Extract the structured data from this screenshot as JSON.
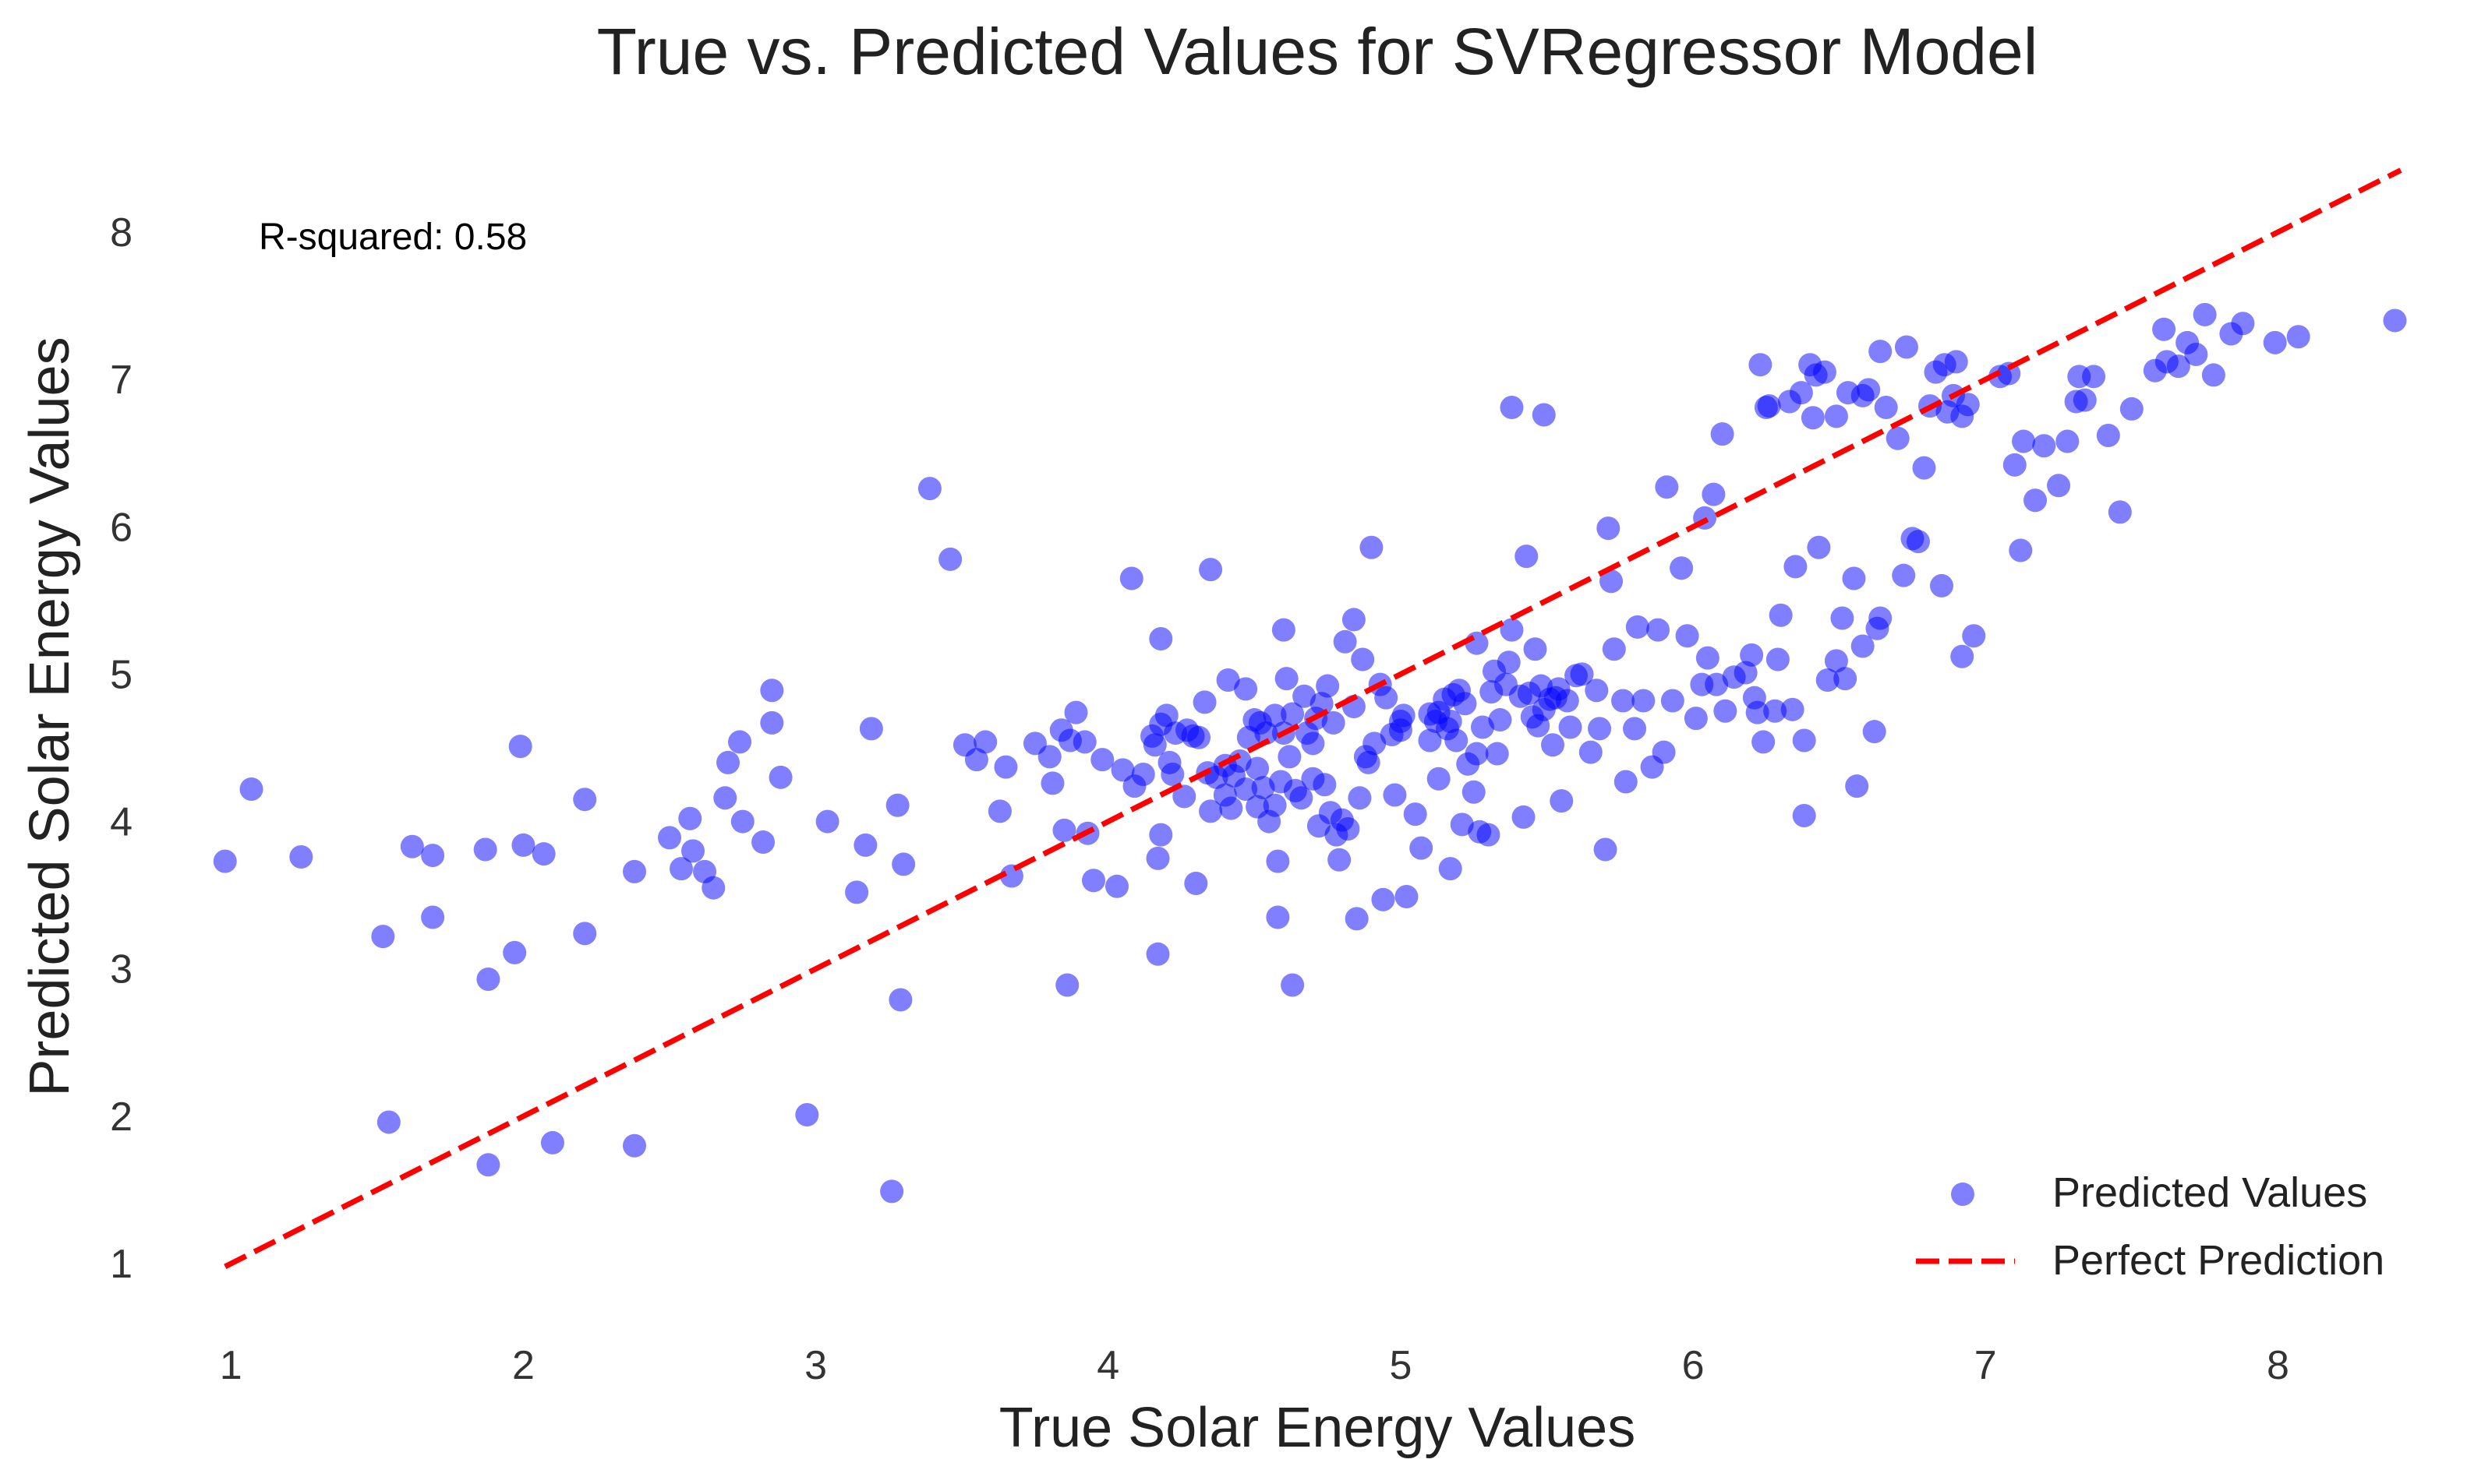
{
  "chart_data": {
    "type": "scatter",
    "title": "True vs. Predicted Values for SVRegressor Model",
    "xlabel": "True Solar Energy Values",
    "ylabel": "Predicted Solar Energy Values",
    "xlim": [
      0.97,
      8.42
    ],
    "ylim": [
      0.72,
      8.65
    ],
    "x_ticks": [
      1,
      2,
      3,
      4,
      5,
      6,
      7,
      8
    ],
    "y_ticks": [
      1,
      2,
      3,
      4,
      5,
      6,
      7,
      8
    ],
    "grid": false,
    "annotation": "R-squared: 0.58",
    "legend_position": "bottom-right",
    "colors": {
      "points": "#0000ff",
      "reference_line": "#ff0000"
    },
    "series": [
      {
        "name": "Predicted Values",
        "kind": "scatter",
        "color": "#0000ff",
        "alpha": 0.5,
        "points": [
          [
            0.98,
            3.73
          ],
          [
            1.07,
            4.22
          ],
          [
            1.24,
            3.76
          ],
          [
            1.52,
            3.22
          ],
          [
            1.54,
            1.96
          ],
          [
            1.62,
            3.83
          ],
          [
            1.69,
            3.77
          ],
          [
            1.69,
            3.35
          ],
          [
            1.87,
            3.81
          ],
          [
            1.88,
            2.93
          ],
          [
            1.88,
            1.67
          ],
          [
            1.97,
            3.11
          ],
          [
            1.99,
            4.51
          ],
          [
            2.0,
            3.84
          ],
          [
            2.07,
            3.78
          ],
          [
            2.1,
            1.82
          ],
          [
            2.21,
            4.15
          ],
          [
            2.21,
            3.24
          ],
          [
            2.38,
            3.66
          ],
          [
            2.38,
            1.8
          ],
          [
            2.5,
            3.89
          ],
          [
            2.54,
            3.68
          ],
          [
            2.57,
            4.02
          ],
          [
            2.58,
            3.8
          ],
          [
            2.62,
            3.66
          ],
          [
            2.65,
            3.55
          ],
          [
            2.69,
            4.16
          ],
          [
            2.7,
            4.4
          ],
          [
            2.74,
            4.54
          ],
          [
            2.75,
            4.0
          ],
          [
            2.82,
            3.86
          ],
          [
            2.85,
            4.89
          ],
          [
            2.85,
            4.67
          ],
          [
            2.88,
            4.3
          ],
          [
            2.97,
            2.01
          ],
          [
            3.04,
            4.0
          ],
          [
            3.14,
            3.52
          ],
          [
            3.17,
            3.84
          ],
          [
            3.19,
            4.63
          ],
          [
            3.26,
            1.49
          ],
          [
            3.28,
            4.11
          ],
          [
            3.29,
            2.79
          ],
          [
            3.3,
            3.71
          ],
          [
            3.39,
            6.26
          ],
          [
            3.46,
            5.78
          ],
          [
            3.51,
            4.52
          ],
          [
            3.55,
            4.42
          ],
          [
            3.58,
            4.54
          ],
          [
            3.63,
            4.07
          ],
          [
            3.65,
            4.37
          ],
          [
            3.67,
            3.63
          ],
          [
            3.75,
            4.53
          ],
          [
            3.8,
            4.44
          ],
          [
            3.81,
            4.26
          ],
          [
            3.84,
            4.62
          ],
          [
            3.85,
            3.94
          ],
          [
            3.86,
            2.89
          ],
          [
            3.87,
            4.55
          ],
          [
            3.89,
            4.74
          ],
          [
            3.92,
            4.54
          ],
          [
            3.93,
            3.92
          ],
          [
            3.95,
            3.6
          ],
          [
            3.98,
            4.42
          ],
          [
            4.03,
            3.56
          ],
          [
            4.05,
            4.35
          ],
          [
            4.08,
            5.65
          ],
          [
            4.09,
            4.24
          ],
          [
            4.12,
            4.32
          ],
          [
            4.15,
            4.58
          ],
          [
            4.16,
            4.52
          ],
          [
            4.17,
            3.75
          ],
          [
            4.17,
            3.1
          ],
          [
            4.18,
            5.24
          ],
          [
            4.18,
            4.66
          ],
          [
            4.18,
            3.91
          ],
          [
            4.2,
            4.72
          ],
          [
            4.21,
            4.4
          ],
          [
            4.22,
            4.32
          ],
          [
            4.23,
            4.6
          ],
          [
            4.26,
            4.17
          ],
          [
            4.27,
            4.62
          ],
          [
            4.29,
            4.58
          ],
          [
            4.3,
            3.58
          ],
          [
            4.31,
            4.57
          ],
          [
            4.33,
            4.81
          ],
          [
            4.34,
            4.33
          ],
          [
            4.35,
            5.71
          ],
          [
            4.35,
            4.07
          ],
          [
            4.37,
            4.3
          ],
          [
            4.4,
            4.18
          ],
          [
            4.4,
            4.38
          ],
          [
            4.41,
            4.96
          ],
          [
            4.42,
            4.09
          ],
          [
            4.43,
            4.31
          ],
          [
            4.45,
            4.41
          ],
          [
            4.47,
            4.22
          ],
          [
            4.47,
            4.9
          ],
          [
            4.48,
            4.57
          ],
          [
            4.5,
            4.69
          ],
          [
            4.51,
            4.36
          ],
          [
            4.51,
            4.1
          ],
          [
            4.52,
            4.67
          ],
          [
            4.53,
            4.23
          ],
          [
            4.54,
            4.6
          ],
          [
            4.55,
            4.0
          ],
          [
            4.57,
            4.11
          ],
          [
            4.57,
            4.72
          ],
          [
            4.58,
            3.73
          ],
          [
            4.58,
            3.35
          ],
          [
            4.59,
            4.27
          ],
          [
            4.6,
            4.6
          ],
          [
            4.6,
            5.3
          ],
          [
            4.61,
            4.97
          ],
          [
            4.62,
            4.44
          ],
          [
            4.63,
            2.89
          ],
          [
            4.63,
            4.73
          ],
          [
            4.64,
            4.21
          ],
          [
            4.66,
            4.16
          ],
          [
            4.67,
            4.85
          ],
          [
            4.68,
            4.6
          ],
          [
            4.7,
            4.53
          ],
          [
            4.7,
            4.29
          ],
          [
            4.71,
            4.7
          ],
          [
            4.72,
            3.97
          ],
          [
            4.73,
            4.8
          ],
          [
            4.74,
            4.25
          ],
          [
            4.75,
            4.92
          ],
          [
            4.76,
            4.06
          ],
          [
            4.77,
            4.67
          ],
          [
            4.78,
            3.91
          ],
          [
            4.79,
            3.74
          ],
          [
            4.8,
            4.01
          ],
          [
            4.81,
            5.22
          ],
          [
            4.82,
            3.95
          ],
          [
            4.84,
            5.37
          ],
          [
            4.84,
            4.78
          ],
          [
            4.85,
            3.34
          ],
          [
            4.86,
            4.16
          ],
          [
            4.87,
            5.1
          ],
          [
            4.88,
            4.44
          ],
          [
            4.89,
            4.4
          ],
          [
            4.9,
            5.86
          ],
          [
            4.91,
            4.53
          ],
          [
            4.93,
            4.93
          ],
          [
            4.94,
            3.47
          ],
          [
            4.95,
            4.84
          ],
          [
            4.97,
            4.59
          ],
          [
            4.98,
            4.18
          ],
          [
            5.0,
            4.62
          ],
          [
            5.0,
            4.68
          ],
          [
            5.01,
            4.72
          ],
          [
            5.02,
            3.49
          ],
          [
            5.05,
            4.05
          ],
          [
            5.07,
            3.82
          ],
          [
            5.1,
            4.73
          ],
          [
            5.1,
            4.55
          ],
          [
            5.12,
            4.68
          ],
          [
            5.13,
            4.74
          ],
          [
            5.13,
            4.29
          ],
          [
            5.15,
            4.83
          ],
          [
            5.16,
            4.63
          ],
          [
            5.17,
            4.68
          ],
          [
            5.17,
            3.68
          ],
          [
            5.18,
            4.86
          ],
          [
            5.19,
            4.55
          ],
          [
            5.2,
            4.89
          ],
          [
            5.21,
            3.98
          ],
          [
            5.22,
            4.8
          ],
          [
            5.23,
            4.39
          ],
          [
            5.25,
            4.2
          ],
          [
            5.26,
            5.21
          ],
          [
            5.26,
            4.46
          ],
          [
            5.27,
            3.93
          ],
          [
            5.28,
            4.64
          ],
          [
            5.3,
            3.91
          ],
          [
            5.31,
            4.88
          ],
          [
            5.32,
            5.02
          ],
          [
            5.33,
            4.46
          ],
          [
            5.34,
            4.69
          ],
          [
            5.36,
            4.93
          ],
          [
            5.37,
            5.08
          ],
          [
            5.38,
            5.3
          ],
          [
            5.38,
            6.81
          ],
          [
            5.41,
            4.85
          ],
          [
            5.42,
            4.03
          ],
          [
            5.43,
            5.8
          ],
          [
            5.44,
            4.87
          ],
          [
            5.45,
            4.71
          ],
          [
            5.46,
            5.17
          ],
          [
            5.47,
            4.65
          ],
          [
            5.48,
            4.92
          ],
          [
            5.49,
            4.76
          ],
          [
            5.49,
            6.76
          ],
          [
            5.51,
            4.83
          ],
          [
            5.52,
            4.52
          ],
          [
            5.53,
            4.84
          ],
          [
            5.54,
            4.9
          ],
          [
            5.55,
            4.14
          ],
          [
            5.57,
            4.82
          ],
          [
            5.58,
            4.64
          ],
          [
            5.6,
            4.99
          ],
          [
            5.62,
            5.0
          ],
          [
            5.65,
            4.47
          ],
          [
            5.67,
            4.89
          ],
          [
            5.68,
            4.63
          ],
          [
            5.7,
            3.81
          ],
          [
            5.71,
            5.99
          ],
          [
            5.72,
            5.63
          ],
          [
            5.73,
            5.17
          ],
          [
            5.76,
            4.82
          ],
          [
            5.77,
            4.27
          ],
          [
            5.8,
            4.63
          ],
          [
            5.81,
            5.32
          ],
          [
            5.83,
            4.82
          ],
          [
            5.86,
            4.37
          ],
          [
            5.88,
            5.3
          ],
          [
            5.9,
            4.47
          ],
          [
            5.91,
            6.27
          ],
          [
            5.93,
            4.82
          ],
          [
            5.96,
            5.72
          ],
          [
            5.98,
            5.26
          ],
          [
            6.01,
            4.7
          ],
          [
            6.03,
            4.93
          ],
          [
            6.04,
            6.06
          ],
          [
            6.05,
            5.11
          ],
          [
            6.07,
            6.22
          ],
          [
            6.08,
            4.93
          ],
          [
            6.1,
            6.63
          ],
          [
            6.11,
            4.75
          ],
          [
            6.14,
            4.98
          ],
          [
            6.18,
            5.01
          ],
          [
            6.2,
            5.13
          ],
          [
            6.21,
            4.84
          ],
          [
            6.22,
            4.74
          ],
          [
            6.23,
            7.1
          ],
          [
            6.24,
            4.54
          ],
          [
            6.25,
            6.81
          ],
          [
            6.26,
            6.82
          ],
          [
            6.28,
            4.75
          ],
          [
            6.29,
            5.1
          ],
          [
            6.3,
            5.4
          ],
          [
            6.33,
            6.85
          ],
          [
            6.34,
            4.76
          ],
          [
            6.35,
            5.73
          ],
          [
            6.37,
            6.91
          ],
          [
            6.38,
            4.55
          ],
          [
            6.38,
            4.04
          ],
          [
            6.4,
            7.1
          ],
          [
            6.41,
            6.74
          ],
          [
            6.42,
            7.03
          ],
          [
            6.43,
            5.86
          ],
          [
            6.45,
            7.05
          ],
          [
            6.46,
            4.96
          ],
          [
            6.49,
            5.09
          ],
          [
            6.49,
            6.75
          ],
          [
            6.51,
            5.38
          ],
          [
            6.52,
            4.97
          ],
          [
            6.53,
            6.91
          ],
          [
            6.55,
            5.65
          ],
          [
            6.56,
            4.24
          ],
          [
            6.58,
            6.89
          ],
          [
            6.58,
            5.19
          ],
          [
            6.6,
            6.93
          ],
          [
            6.62,
            4.61
          ],
          [
            6.63,
            5.31
          ],
          [
            6.64,
            5.38
          ],
          [
            6.64,
            7.19
          ],
          [
            6.66,
            6.81
          ],
          [
            6.7,
            6.6
          ],
          [
            6.72,
            5.67
          ],
          [
            6.73,
            7.22
          ],
          [
            6.75,
            5.92
          ],
          [
            6.77,
            5.9
          ],
          [
            6.79,
            6.4
          ],
          [
            6.81,
            6.82
          ],
          [
            6.83,
            7.05
          ],
          [
            6.85,
            5.6
          ],
          [
            6.86,
            7.1
          ],
          [
            6.87,
            6.78
          ],
          [
            6.89,
            6.89
          ],
          [
            6.9,
            7.12
          ],
          [
            6.92,
            6.75
          ],
          [
            6.92,
            5.12
          ],
          [
            6.94,
            6.83
          ],
          [
            6.96,
            5.26
          ],
          [
            7.05,
            7.02
          ],
          [
            7.08,
            7.04
          ],
          [
            7.1,
            6.42
          ],
          [
            7.12,
            5.84
          ],
          [
            7.13,
            6.58
          ],
          [
            7.17,
            6.18
          ],
          [
            7.2,
            6.55
          ],
          [
            7.25,
            6.28
          ],
          [
            7.28,
            6.58
          ],
          [
            7.31,
            6.85
          ],
          [
            7.32,
            7.02
          ],
          [
            7.34,
            6.86
          ],
          [
            7.37,
            7.02
          ],
          [
            7.42,
            6.62
          ],
          [
            7.46,
            6.1
          ],
          [
            7.5,
            6.8
          ],
          [
            7.58,
            7.06
          ],
          [
            7.61,
            7.34
          ],
          [
            7.62,
            7.12
          ],
          [
            7.66,
            7.09
          ],
          [
            7.69,
            7.25
          ],
          [
            7.72,
            7.17
          ],
          [
            7.75,
            7.44
          ],
          [
            7.78,
            7.03
          ],
          [
            7.84,
            7.31
          ],
          [
            7.88,
            7.38
          ],
          [
            7.99,
            7.25
          ],
          [
            8.07,
            7.29
          ],
          [
            8.4,
            7.4
          ]
        ]
      },
      {
        "name": "Perfect Prediction",
        "kind": "line",
        "style": "dashed",
        "color": "#ff0000",
        "x": [
          0.98,
          8.42
        ],
        "y": [
          0.98,
          8.42
        ]
      }
    ]
  }
}
